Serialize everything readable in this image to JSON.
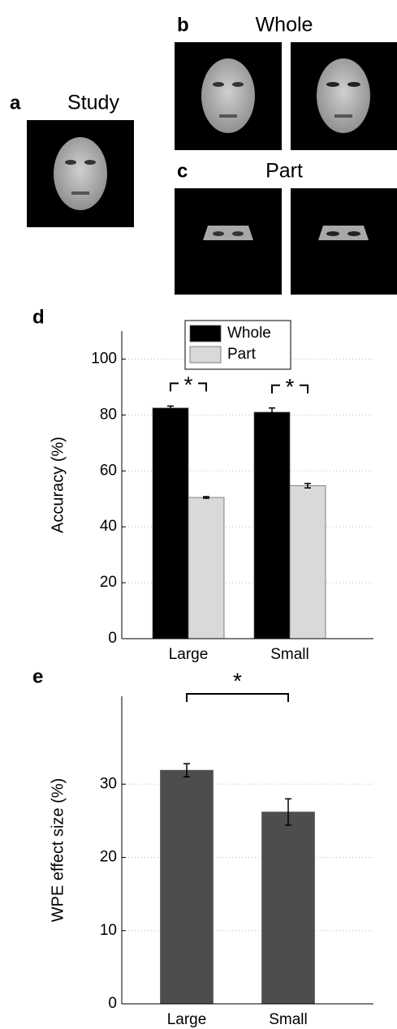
{
  "figure": {
    "panels": [
      {
        "label": "a",
        "title": "Study"
      },
      {
        "label": "b",
        "title": "Whole"
      },
      {
        "label": "c",
        "title": "Part"
      }
    ]
  },
  "chart_data": [
    {
      "type": "bar",
      "panel_label": "d",
      "y_label": "Accuracy  (%)",
      "categories": [
        "Large",
        "Small"
      ],
      "series": [
        {
          "name": "Whole",
          "color": "#000000",
          "values": [
            82.5,
            81
          ],
          "errors": [
            0.7,
            1.5
          ]
        },
        {
          "name": "Part",
          "color": "#d9d9d9",
          "values": [
            50.5,
            54.7
          ],
          "errors": [
            0.3,
            0.8
          ]
        }
      ],
      "annotations": [
        "*",
        "*"
      ],
      "ylim": [
        0,
        110
      ],
      "yticks": [
        0,
        20,
        40,
        60,
        80,
        100
      ],
      "grid": true,
      "legend": "upper center"
    },
    {
      "type": "bar",
      "panel_label": "e",
      "y_label": "WPE  effect  size  (%)",
      "categories": [
        "Large",
        "Small"
      ],
      "series": [
        {
          "color": "#4d4d4d",
          "values": [
            31.9,
            26.2
          ],
          "errors": [
            0.9,
            1.8
          ]
        }
      ],
      "annotations": [
        "*"
      ],
      "ylim": [
        0,
        42
      ],
      "yticks": [
        0,
        10,
        20,
        30
      ],
      "grid": true
    }
  ]
}
